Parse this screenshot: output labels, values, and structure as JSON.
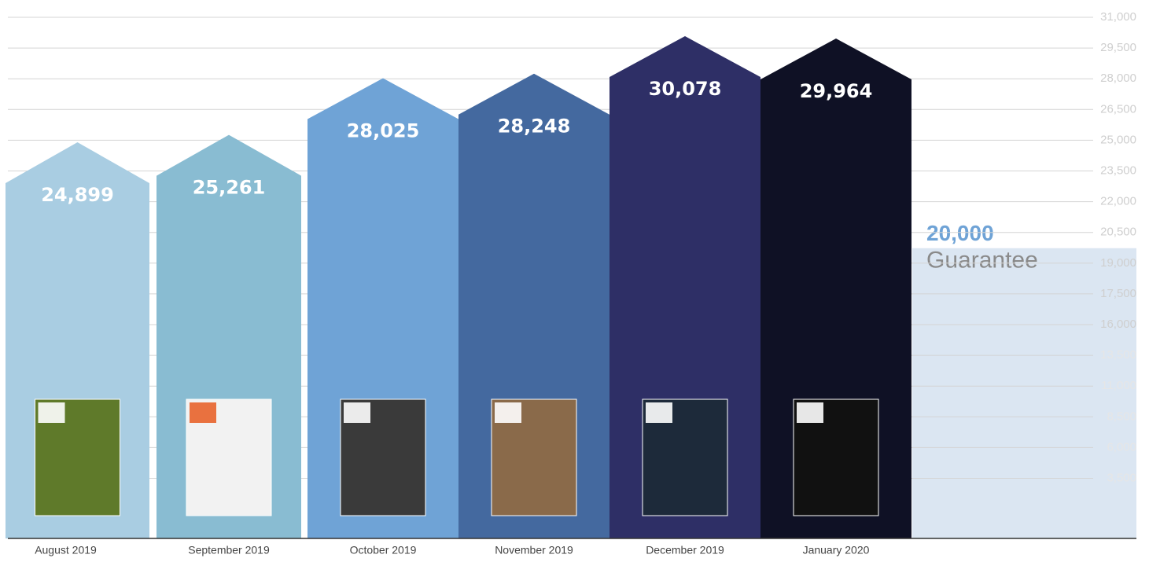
{
  "chart_data": {
    "type": "bar",
    "categories": [
      "August 2019",
      "September 2019",
      "October 2019",
      "November 2019",
      "December 2019",
      "January 2020"
    ],
    "values": [
      24899,
      25261,
      28025,
      28248,
      30078,
      29964
    ],
    "value_labels": [
      "24,899",
      "25,261",
      "28,025",
      "28,248",
      "30,078",
      "29,964"
    ],
    "colors": [
      "#a9cde2",
      "#89bcd2",
      "#6fa3d6",
      "#44699f",
      "#2e2f66",
      "#0f1125"
    ],
    "ylim": [
      0,
      31000
    ],
    "yticks": [
      {
        "value": 31000,
        "label": "31,000"
      },
      {
        "value": 29500,
        "label": "29,500"
      },
      {
        "value": 28000,
        "label": "28,000"
      },
      {
        "value": 26500,
        "label": "26,500"
      },
      {
        "value": 25000,
        "label": "25,000"
      },
      {
        "value": 23500,
        "label": "23,500"
      },
      {
        "value": 22000,
        "label": "22,000"
      },
      {
        "value": 20500,
        "label": "20,500"
      },
      {
        "value": 19000,
        "label": "19,000"
      },
      {
        "value": 17500,
        "label": "17,500"
      },
      {
        "value": 16000,
        "label": "16,000"
      },
      {
        "value": 13500,
        "label": "13,500"
      },
      {
        "value": 11000,
        "label": "11,000"
      },
      {
        "value": 8500,
        "label": "8,500"
      },
      {
        "value": 6000,
        "label": "6,000"
      },
      {
        "value": 3500,
        "label": "3,500"
      }
    ],
    "grid": true,
    "guarantee": {
      "value": 20000,
      "label": "20,000",
      "text": "Guarantee",
      "color": "#dbe6f2"
    }
  }
}
